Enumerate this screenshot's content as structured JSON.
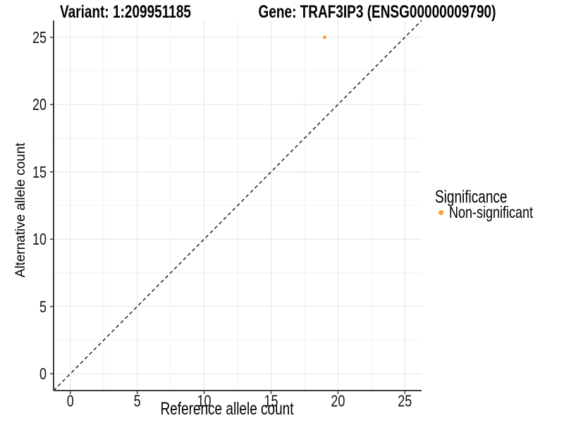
{
  "chart_data": {
    "type": "scatter",
    "title_left": "Variant: 1:209951185",
    "title_right": "Gene: TRAF3IP3 (ENSG00000009790)",
    "xlabel": "Reference allele count",
    "ylabel": "Alternative allele count",
    "xlim": [
      -1.25,
      26.25
    ],
    "ylim": [
      -1.25,
      26.25
    ],
    "x_ticks": [
      0,
      5,
      10,
      15,
      20,
      25
    ],
    "y_ticks": [
      0,
      5,
      10,
      15,
      20,
      25
    ],
    "x_minor_ticks": [
      2.5,
      7.5,
      12.5,
      17.5,
      22.5
    ],
    "y_minor_ticks": [
      2.5,
      7.5,
      12.5,
      17.5,
      22.5
    ],
    "grid": true,
    "points": [
      {
        "x": 19,
        "y": 25,
        "label": "Non-significant",
        "color": "#FCA32C"
      }
    ],
    "reference_line": {
      "slope": 1,
      "intercept": 0,
      "style": "dashed",
      "color": "#111111"
    },
    "legend": {
      "title": "Significance",
      "position": "right",
      "entries": [
        {
          "label": "Non-significant",
          "color": "#FCA32C"
        }
      ]
    },
    "colors": {
      "background": "#FFFFFF",
      "grid_major": "#E4E4E4",
      "grid_minor": "#F2F2F2",
      "axis": "#3C3C3C",
      "point": "#FCA32C"
    }
  }
}
